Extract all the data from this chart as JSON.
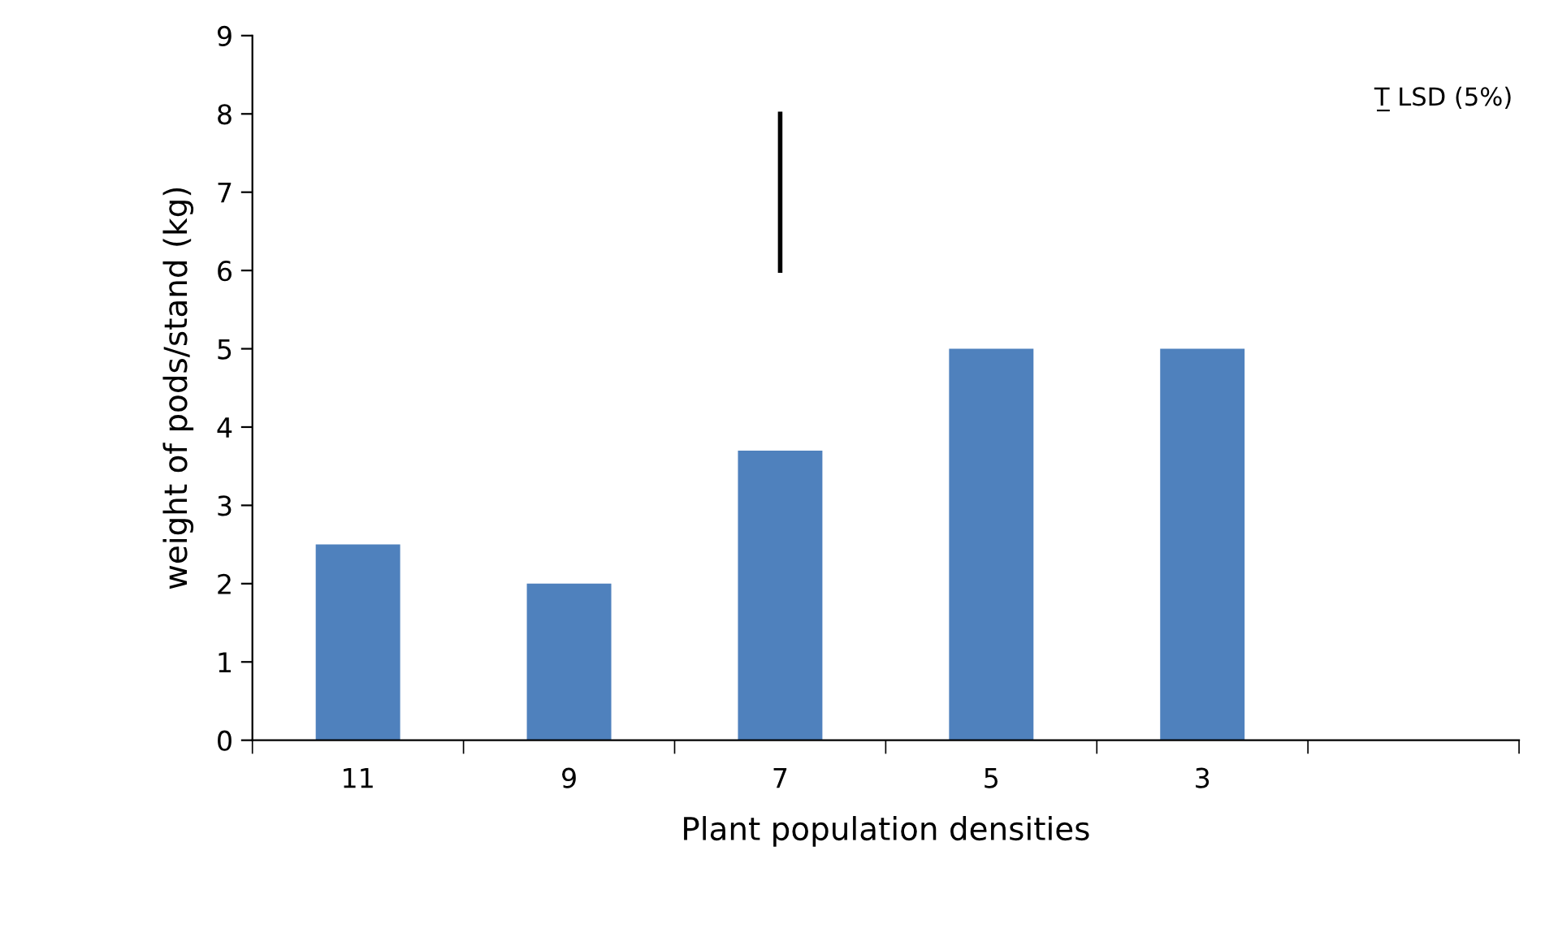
{
  "chart_data": {
    "type": "bar",
    "xlabel": "Plant population densities",
    "ylabel": "weight of pods/stand (kg)",
    "categories": [
      "11",
      "9",
      "7",
      "5",
      "3",
      null
    ],
    "series": [
      {
        "color": "#4f81bd",
        "values": [
          2.5,
          2,
          3.7,
          5,
          5,
          null
        ]
      },
      {
        "type": "line",
        "color": "#000000",
        "x": [
          "7",
          "7"
        ],
        "values": [
          6,
          8
        ]
      }
    ],
    "ylim": [
      0,
      9
    ],
    "yticks": [
      0,
      1,
      2,
      3,
      4,
      5,
      6,
      7,
      8,
      9
    ],
    "grid": false,
    "legend": false,
    "annotations": [
      "T̲ LSD (5%)"
    ]
  }
}
